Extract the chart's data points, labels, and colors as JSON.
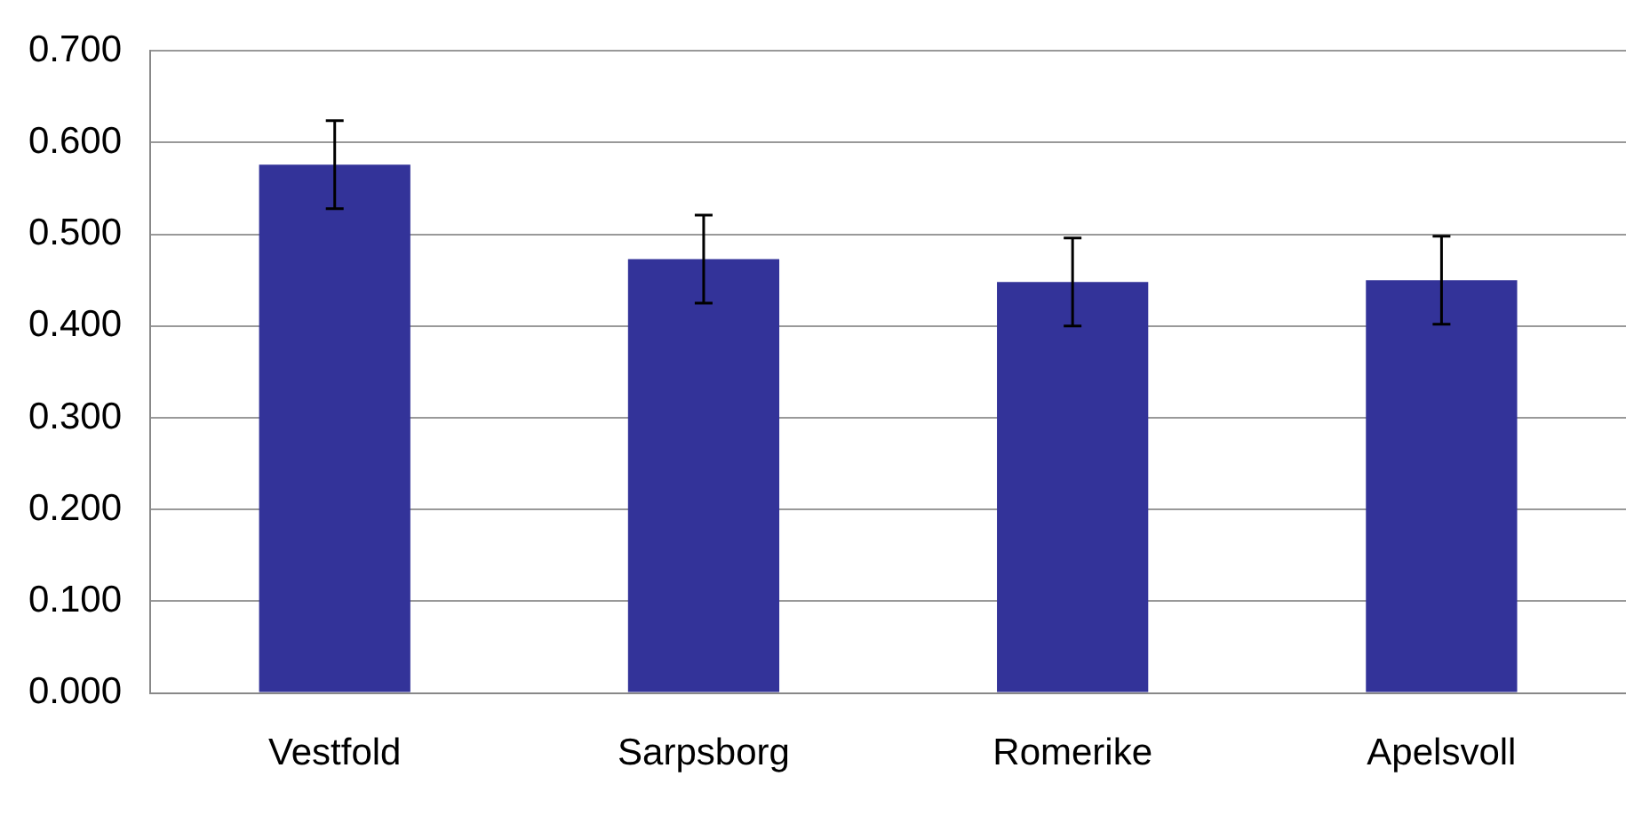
{
  "chart_data": {
    "type": "bar",
    "categories": [
      "Vestfold",
      "Sarpsborg",
      "Romerike",
      "Apelsvoll"
    ],
    "values": [
      0.576,
      0.473,
      0.448,
      0.45
    ],
    "errors": [
      0.048,
      0.048,
      0.048,
      0.048
    ],
    "color": "#333399",
    "ylim": [
      0,
      0.7
    ],
    "yticks": [
      {
        "value": 0,
        "label": "0.000"
      },
      {
        "value": 0.1,
        "label": "0.100"
      },
      {
        "value": 0.2,
        "label": "0.200"
      },
      {
        "value": 0.3,
        "label": "0.300"
      },
      {
        "value": 0.4,
        "label": "0.400"
      },
      {
        "value": 0.5,
        "label": "0.500"
      },
      {
        "value": 0.6,
        "label": "0.600"
      },
      {
        "value": 0.7,
        "label": "0.700"
      }
    ],
    "grid": "y",
    "legend": false
  }
}
